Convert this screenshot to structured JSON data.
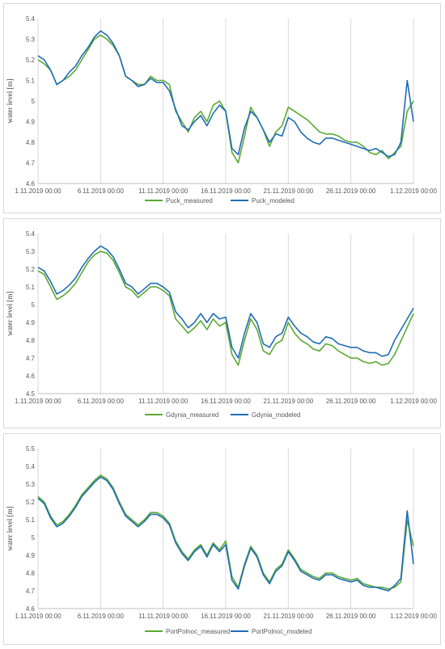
{
  "colors": {
    "measured": "#5aaa32",
    "modeled": "#1f6db5",
    "grid": "#d9d9d9",
    "axis": "#bfbfbf"
  },
  "chart_data": [
    {
      "type": "line",
      "ylabel": "water level [m]",
      "ylim": [
        4.6,
        5.4
      ],
      "yticks": [
        4.6,
        4.7,
        4.8,
        4.9,
        5,
        5.1,
        5.2,
        5.3,
        5.4
      ],
      "xlim": [
        "2019-11-01",
        "2019-12-01"
      ],
      "xticks": [
        "1.11.2019 00:00",
        "6.11.2019 00:00",
        "11.11.2019 00:00",
        "16.11.2019 00:00",
        "21.11.2019 00:00",
        "26.11.2019 00:00",
        "1.12.2019 00:00"
      ],
      "grid": "vertical",
      "legend": "bottom",
      "x": [
        "2019-11-01",
        "2019-11-01 12:00",
        "2019-11-02",
        "2019-11-02 12:00",
        "2019-11-03",
        "2019-11-03 12:00",
        "2019-11-04",
        "2019-11-04 12:00",
        "2019-11-05",
        "2019-11-05 12:00",
        "2019-11-06",
        "2019-11-06 12:00",
        "2019-11-07",
        "2019-11-07 12:00",
        "2019-11-08",
        "2019-11-08 12:00",
        "2019-11-09",
        "2019-11-09 12:00",
        "2019-11-10",
        "2019-11-10 12:00",
        "2019-11-11",
        "2019-11-11 12:00",
        "2019-11-12",
        "2019-11-12 12:00",
        "2019-11-13",
        "2019-11-13 12:00",
        "2019-11-14",
        "2019-11-14 12:00",
        "2019-11-15",
        "2019-11-15 12:00",
        "2019-11-16",
        "2019-11-16 12:00",
        "2019-11-17",
        "2019-11-17 12:00",
        "2019-11-18",
        "2019-11-18 12:00",
        "2019-11-19",
        "2019-11-19 12:00",
        "2019-11-20",
        "2019-11-20 12:00",
        "2019-11-21",
        "2019-11-21 12:00",
        "2019-11-22",
        "2019-11-22 12:00",
        "2019-11-23",
        "2019-11-23 12:00",
        "2019-11-24",
        "2019-11-24 12:00",
        "2019-11-25",
        "2019-11-25 12:00",
        "2019-11-26",
        "2019-11-26 12:00",
        "2019-11-27",
        "2019-11-27 12:00",
        "2019-11-28",
        "2019-11-28 12:00",
        "2019-11-29",
        "2019-11-29 12:00",
        "2019-11-30",
        "2019-11-30 12:00",
        "2019-12-01"
      ],
      "series": [
        {
          "name": "Puck_measured",
          "values": [
            5.2,
            5.18,
            5.15,
            5.08,
            5.1,
            5.12,
            5.15,
            5.2,
            5.25,
            5.3,
            5.32,
            5.3,
            5.27,
            5.22,
            5.12,
            5.1,
            5.08,
            5.08,
            5.12,
            5.1,
            5.1,
            5.08,
            4.95,
            4.9,
            4.85,
            4.92,
            4.95,
            4.9,
            4.98,
            5.0,
            4.95,
            4.75,
            4.7,
            4.83,
            4.97,
            4.92,
            4.86,
            4.78,
            4.85,
            4.88,
            4.97,
            4.95,
            4.93,
            4.91,
            4.88,
            4.85,
            4.84,
            4.84,
            4.83,
            4.81,
            4.8,
            4.8,
            4.78,
            4.75,
            4.74,
            4.76,
            4.72,
            4.75,
            4.78,
            4.95,
            5.0
          ]
        },
        {
          "name": "Puck_modeled",
          "values": [
            5.22,
            5.2,
            5.15,
            5.08,
            5.1,
            5.14,
            5.17,
            5.22,
            5.26,
            5.31,
            5.34,
            5.32,
            5.28,
            5.22,
            5.12,
            5.1,
            5.07,
            5.08,
            5.11,
            5.09,
            5.09,
            5.05,
            4.96,
            4.88,
            4.86,
            4.9,
            4.93,
            4.88,
            4.94,
            4.98,
            4.95,
            4.77,
            4.74,
            4.87,
            4.95,
            4.92,
            4.86,
            4.8,
            4.84,
            4.83,
            4.92,
            4.9,
            4.85,
            4.82,
            4.8,
            4.79,
            4.82,
            4.82,
            4.81,
            4.8,
            4.79,
            4.78,
            4.77,
            4.76,
            4.77,
            4.75,
            4.73,
            4.74,
            4.8,
            5.1,
            4.9
          ]
        }
      ]
    },
    {
      "type": "line",
      "ylabel": "water level [m]",
      "ylim": [
        4.5,
        5.4
      ],
      "yticks": [
        4.5,
        4.6,
        4.7,
        4.8,
        4.9,
        5,
        5.1,
        5.2,
        5.3,
        5.4
      ],
      "xlim": [
        "2019-11-01",
        "2019-12-01"
      ],
      "xticks": [
        "1.11.2019 00:00",
        "6.11.2019 00:00",
        "11.11.2019 00:00",
        "16.11.2019 00:00",
        "21.11.2019 00:00",
        "26.11.2019 00:00",
        "1.12.2019 00:00"
      ],
      "grid": "vertical",
      "legend": "bottom",
      "x": [
        "2019-11-01",
        "2019-11-01 12:00",
        "2019-11-02",
        "2019-11-02 12:00",
        "2019-11-03",
        "2019-11-03 12:00",
        "2019-11-04",
        "2019-11-04 12:00",
        "2019-11-05",
        "2019-11-05 12:00",
        "2019-11-06",
        "2019-11-06 12:00",
        "2019-11-07",
        "2019-11-07 12:00",
        "2019-11-08",
        "2019-11-08 12:00",
        "2019-11-09",
        "2019-11-09 12:00",
        "2019-11-10",
        "2019-11-10 12:00",
        "2019-11-11",
        "2019-11-11 12:00",
        "2019-11-12",
        "2019-11-12 12:00",
        "2019-11-13",
        "2019-11-13 12:00",
        "2019-11-14",
        "2019-11-14 12:00",
        "2019-11-15",
        "2019-11-15 12:00",
        "2019-11-16",
        "2019-11-16 12:00",
        "2019-11-17",
        "2019-11-17 12:00",
        "2019-11-18",
        "2019-11-18 12:00",
        "2019-11-19",
        "2019-11-19 12:00",
        "2019-11-20",
        "2019-11-20 12:00",
        "2019-11-21",
        "2019-11-21 12:00",
        "2019-11-22",
        "2019-11-22 12:00",
        "2019-11-23",
        "2019-11-23 12:00",
        "2019-11-24",
        "2019-11-24 12:00",
        "2019-11-25",
        "2019-11-25 12:00",
        "2019-11-26",
        "2019-11-26 12:00",
        "2019-11-27",
        "2019-11-27 12:00",
        "2019-11-28",
        "2019-11-28 12:00",
        "2019-11-29",
        "2019-11-29 12:00",
        "2019-12-01"
      ],
      "series": [
        {
          "name": "Gdynia_measured",
          "values": [
            5.19,
            5.17,
            5.1,
            5.03,
            5.05,
            5.08,
            5.12,
            5.18,
            5.24,
            5.28,
            5.3,
            5.29,
            5.25,
            5.18,
            5.1,
            5.08,
            5.04,
            5.07,
            5.1,
            5.1,
            5.08,
            5.05,
            4.92,
            4.88,
            4.84,
            4.87,
            4.91,
            4.86,
            4.92,
            4.88,
            4.9,
            4.72,
            4.66,
            4.8,
            4.92,
            4.86,
            4.74,
            4.72,
            4.78,
            4.8,
            4.9,
            4.84,
            4.8,
            4.78,
            4.75,
            4.74,
            4.78,
            4.77,
            4.74,
            4.72,
            4.7,
            4.7,
            4.68,
            4.67,
            4.68,
            4.66,
            4.67,
            4.72,
            4.95
          ]
        },
        {
          "name": "Gdynia_modeled",
          "values": [
            5.21,
            5.19,
            5.13,
            5.06,
            5.08,
            5.11,
            5.15,
            5.21,
            5.26,
            5.3,
            5.33,
            5.31,
            5.27,
            5.2,
            5.12,
            5.1,
            5.06,
            5.09,
            5.12,
            5.12,
            5.1,
            5.07,
            4.96,
            4.92,
            4.87,
            4.9,
            4.95,
            4.9,
            4.95,
            4.92,
            4.93,
            4.76,
            4.7,
            4.84,
            4.95,
            4.9,
            4.78,
            4.76,
            4.82,
            4.84,
            4.93,
            4.88,
            4.84,
            4.82,
            4.79,
            4.78,
            4.82,
            4.81,
            4.78,
            4.77,
            4.76,
            4.76,
            4.74,
            4.73,
            4.73,
            4.71,
            4.72,
            4.8,
            4.98
          ]
        }
      ]
    },
    {
      "type": "line",
      "ylabel": "water level [m]",
      "ylim": [
        4.6,
        5.5
      ],
      "yticks": [
        4.6,
        4.7,
        4.8,
        4.9,
        5,
        5.1,
        5.2,
        5.3,
        5.4,
        5.5
      ],
      "xlim": [
        "2019-11-01",
        "2019-12-01"
      ],
      "xticks": [
        "1.11.2019 00:00",
        "6.11.2019 00:00",
        "11.11.2019 00:00",
        "16.11.2019 00:00",
        "21.11.2019 00:00",
        "26.11.2019 00:00",
        "1.12.2019 00:00"
      ],
      "grid": "vertical",
      "legend": "bottom",
      "x": [
        "2019-11-01",
        "2019-11-01 12:00",
        "2019-11-02",
        "2019-11-02 12:00",
        "2019-11-03",
        "2019-11-03 12:00",
        "2019-11-04",
        "2019-11-04 12:00",
        "2019-11-05",
        "2019-11-05 12:00",
        "2019-11-06",
        "2019-11-06 12:00",
        "2019-11-07",
        "2019-11-07 12:00",
        "2019-11-08",
        "2019-11-08 12:00",
        "2019-11-09",
        "2019-11-09 12:00",
        "2019-11-10",
        "2019-11-10 12:00",
        "2019-11-11",
        "2019-11-11 12:00",
        "2019-11-12",
        "2019-11-12 12:00",
        "2019-11-13",
        "2019-11-13 12:00",
        "2019-11-14",
        "2019-11-14 12:00",
        "2019-11-15",
        "2019-11-15 12:00",
        "2019-11-16",
        "2019-11-16 12:00",
        "2019-11-17",
        "2019-11-17 12:00",
        "2019-11-18",
        "2019-11-18 12:00",
        "2019-11-19",
        "2019-11-19 12:00",
        "2019-11-20",
        "2019-11-20 12:00",
        "2019-11-21",
        "2019-11-21 12:00",
        "2019-11-22",
        "2019-11-22 12:00",
        "2019-11-23",
        "2019-11-23 12:00",
        "2019-11-24",
        "2019-11-24 12:00",
        "2019-11-25",
        "2019-11-25 12:00",
        "2019-11-26",
        "2019-11-26 12:00",
        "2019-11-27",
        "2019-11-27 12:00",
        "2019-11-28",
        "2019-11-28 12:00",
        "2019-11-29",
        "2019-11-29 12:00",
        "2019-11-30",
        "2019-11-30 12:00",
        "2019-12-01"
      ],
      "series": [
        {
          "name": "PortPolnoc_measured",
          "values": [
            5.23,
            5.2,
            5.12,
            5.07,
            5.09,
            5.13,
            5.18,
            5.24,
            5.28,
            5.32,
            5.35,
            5.33,
            5.28,
            5.2,
            5.13,
            5.1,
            5.07,
            5.1,
            5.14,
            5.14,
            5.12,
            5.08,
            4.98,
            4.92,
            4.88,
            4.93,
            4.96,
            4.9,
            4.97,
            4.93,
            4.98,
            4.78,
            4.72,
            4.85,
            4.95,
            4.9,
            4.8,
            4.75,
            4.82,
            4.85,
            4.93,
            4.88,
            4.82,
            4.8,
            4.78,
            4.77,
            4.8,
            4.8,
            4.78,
            4.77,
            4.76,
            4.77,
            4.74,
            4.73,
            4.72,
            4.72,
            4.71,
            4.72,
            4.75,
            5.1,
            4.95
          ]
        },
        {
          "name": "PortPolnoc_modeled",
          "values": [
            5.22,
            5.19,
            5.11,
            5.06,
            5.08,
            5.12,
            5.17,
            5.23,
            5.27,
            5.31,
            5.34,
            5.32,
            5.27,
            5.19,
            5.12,
            5.09,
            5.06,
            5.09,
            5.13,
            5.13,
            5.11,
            5.07,
            4.97,
            4.91,
            4.87,
            4.92,
            4.95,
            4.89,
            4.96,
            4.92,
            4.96,
            4.76,
            4.71,
            4.84,
            4.94,
            4.89,
            4.79,
            4.74,
            4.81,
            4.84,
            4.92,
            4.87,
            4.81,
            4.79,
            4.77,
            4.76,
            4.79,
            4.79,
            4.77,
            4.76,
            4.75,
            4.76,
            4.73,
            4.72,
            4.72,
            4.71,
            4.7,
            4.73,
            4.77,
            5.15,
            4.85
          ]
        }
      ]
    }
  ]
}
